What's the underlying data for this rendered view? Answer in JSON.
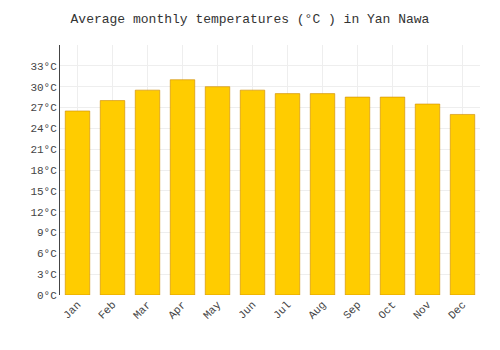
{
  "chart_data": {
    "type": "bar",
    "title": "Average monthly temperatures (°C ) in Yan Nawa",
    "categories": [
      "Jan",
      "Feb",
      "Mar",
      "Apr",
      "May",
      "Jun",
      "Jul",
      "Aug",
      "Sep",
      "Oct",
      "Nov",
      "Dec"
    ],
    "values": [
      26.5,
      28.0,
      29.5,
      31.0,
      30.0,
      29.5,
      29.0,
      29.0,
      28.5,
      28.5,
      27.5,
      26.0
    ],
    "color": "#FFCC00",
    "ylim": [
      0,
      36
    ],
    "yticks": [
      {
        "value": 0,
        "label": "0°C"
      },
      {
        "value": 3,
        "label": "3°C"
      },
      {
        "value": 6,
        "label": "6°C"
      },
      {
        "value": 9,
        "label": "9°C"
      },
      {
        "value": 12,
        "label": "12°C"
      },
      {
        "value": 15,
        "label": "15°C"
      },
      {
        "value": 18,
        "label": "18°C"
      },
      {
        "value": 21,
        "label": "21°C"
      },
      {
        "value": 24,
        "label": "24°C"
      },
      {
        "value": 27,
        "label": "27°C"
      },
      {
        "value": 30,
        "label": "30°C"
      },
      {
        "value": 33,
        "label": "33°C"
      }
    ],
    "grid": true
  }
}
